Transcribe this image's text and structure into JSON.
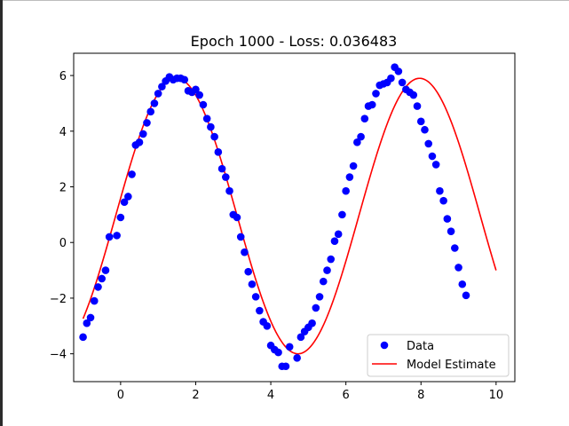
{
  "chart_data": {
    "type": "scatter",
    "title": "Epoch 1000 - Loss: 0.036483",
    "xlabel": "",
    "ylabel": "",
    "xlim": [
      -1.25,
      10.5
    ],
    "ylim": [
      -5.0,
      6.8
    ],
    "xticks": [
      0,
      2,
      4,
      6,
      8,
      10
    ],
    "xtick_labels": [
      "0",
      "2",
      "4",
      "6",
      "8",
      "10"
    ],
    "yticks": [
      -4,
      -2,
      0,
      2,
      4,
      6
    ],
    "ytick_labels": [
      "−4",
      "−2",
      "0",
      "2",
      "4",
      "6"
    ],
    "grid": false,
    "legend_position": "lower-right",
    "series": [
      {
        "name": "Data",
        "kind": "scatter",
        "color": "#0000ff",
        "points": [
          [
            -1.0,
            -3.4
          ],
          [
            -0.9,
            -2.9
          ],
          [
            -0.8,
            -2.7
          ],
          [
            -0.7,
            -2.1
          ],
          [
            -0.6,
            -1.6
          ],
          [
            -0.5,
            -1.3
          ],
          [
            -0.4,
            -1.0
          ],
          [
            -0.3,
            0.2
          ],
          [
            -0.1,
            0.25
          ],
          [
            0.0,
            0.9
          ],
          [
            0.1,
            1.45
          ],
          [
            0.2,
            1.65
          ],
          [
            0.3,
            2.45
          ],
          [
            0.4,
            3.5
          ],
          [
            0.5,
            3.6
          ],
          [
            0.6,
            3.9
          ],
          [
            0.7,
            4.3
          ],
          [
            0.8,
            4.7
          ],
          [
            0.9,
            5.0
          ],
          [
            1.0,
            5.35
          ],
          [
            1.1,
            5.6
          ],
          [
            1.2,
            5.8
          ],
          [
            1.3,
            5.95
          ],
          [
            1.4,
            5.85
          ],
          [
            1.5,
            5.9
          ],
          [
            1.6,
            5.9
          ],
          [
            1.7,
            5.85
          ],
          [
            1.8,
            5.45
          ],
          [
            1.9,
            5.4
          ],
          [
            2.0,
            5.5
          ],
          [
            2.1,
            5.3
          ],
          [
            2.2,
            4.95
          ],
          [
            2.3,
            4.45
          ],
          [
            2.4,
            4.15
          ],
          [
            2.5,
            3.8
          ],
          [
            2.6,
            3.25
          ],
          [
            2.7,
            2.65
          ],
          [
            2.8,
            2.35
          ],
          [
            2.9,
            1.85
          ],
          [
            3.0,
            1.0
          ],
          [
            3.1,
            0.9
          ],
          [
            3.2,
            0.2
          ],
          [
            3.3,
            -0.35
          ],
          [
            3.4,
            -1.05
          ],
          [
            3.5,
            -1.5
          ],
          [
            3.6,
            -1.95
          ],
          [
            3.7,
            -2.45
          ],
          [
            3.8,
            -2.85
          ],
          [
            3.9,
            -3.0
          ],
          [
            4.0,
            -3.7
          ],
          [
            4.1,
            -3.85
          ],
          [
            4.2,
            -3.95
          ],
          [
            4.3,
            -4.45
          ],
          [
            4.4,
            -4.45
          ],
          [
            4.5,
            -3.75
          ],
          [
            4.7,
            -4.15
          ],
          [
            4.8,
            -3.4
          ],
          [
            4.9,
            -3.2
          ],
          [
            5.0,
            -3.05
          ],
          [
            5.1,
            -2.9
          ],
          [
            5.2,
            -2.35
          ],
          [
            5.3,
            -1.95
          ],
          [
            5.4,
            -1.4
          ],
          [
            5.5,
            -1.0
          ],
          [
            5.6,
            -0.6
          ],
          [
            5.7,
            0.05
          ],
          [
            5.8,
            0.3
          ],
          [
            5.9,
            1.0
          ],
          [
            6.0,
            1.85
          ],
          [
            6.1,
            2.35
          ],
          [
            6.2,
            2.75
          ],
          [
            6.3,
            3.6
          ],
          [
            6.4,
            3.8
          ],
          [
            6.5,
            4.45
          ],
          [
            6.6,
            4.9
          ],
          [
            6.7,
            4.95
          ],
          [
            6.8,
            5.35
          ],
          [
            6.9,
            5.65
          ],
          [
            7.0,
            5.7
          ],
          [
            7.1,
            5.75
          ],
          [
            7.2,
            5.9
          ],
          [
            7.3,
            6.3
          ],
          [
            7.4,
            6.15
          ],
          [
            7.5,
            5.75
          ],
          [
            7.6,
            5.5
          ],
          [
            7.7,
            5.4
          ],
          [
            7.8,
            5.3
          ],
          [
            7.9,
            4.9
          ],
          [
            8.0,
            4.35
          ],
          [
            8.1,
            4.05
          ],
          [
            8.2,
            3.55
          ],
          [
            8.3,
            3.1
          ],
          [
            8.4,
            2.8
          ],
          [
            8.5,
            1.85
          ],
          [
            8.6,
            1.5
          ],
          [
            8.7,
            0.85
          ],
          [
            8.8,
            0.4
          ],
          [
            8.9,
            -0.2
          ],
          [
            9.0,
            -0.9
          ],
          [
            9.1,
            -1.5
          ],
          [
            9.2,
            -1.9
          ]
        ]
      },
      {
        "name": "Model Estimate",
        "kind": "line",
        "color": "#ff0000",
        "amplitude": 4.95,
        "offset": 0.95,
        "frequency": 0.97,
        "phase": 0.13,
        "x_range": [
          -1.0,
          10.0
        ]
      }
    ]
  }
}
